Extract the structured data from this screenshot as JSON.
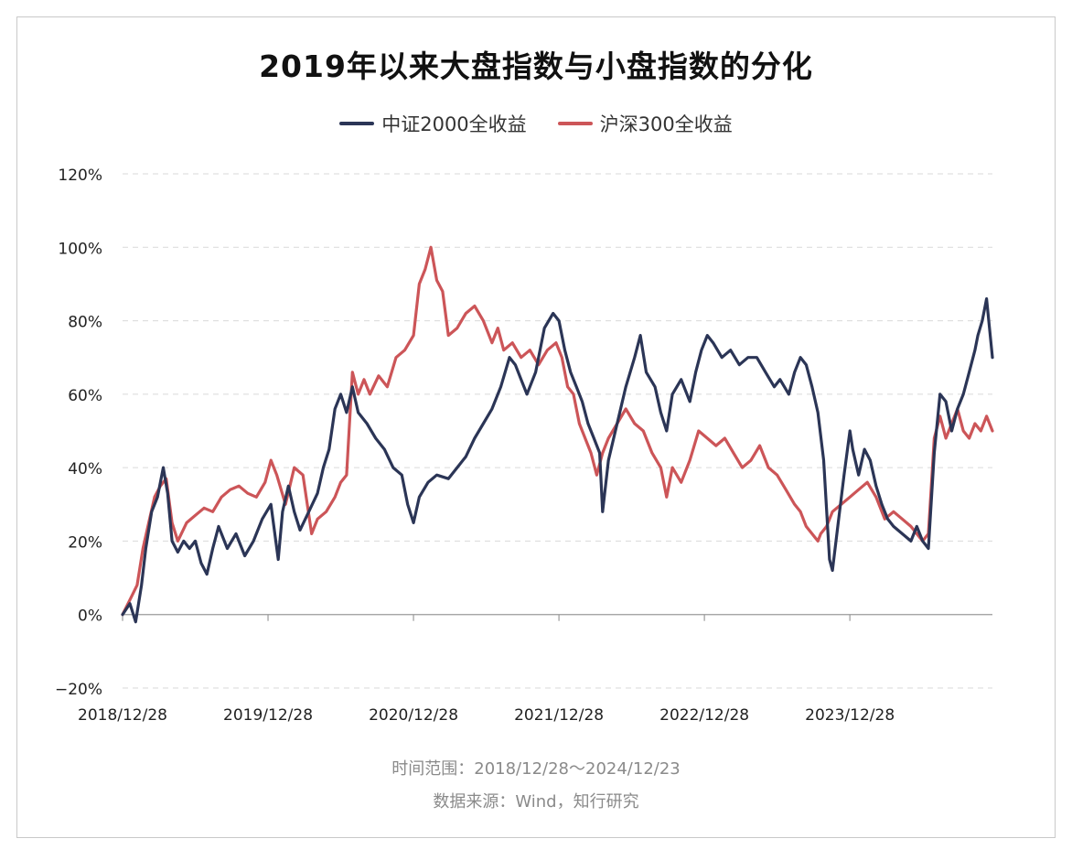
{
  "title": "2019年以来大盘指数与小盘指数的分化",
  "source_lines": [
    "时间范围：2018/12/28～2024/12/23",
    "数据来源：Wind，知行研究"
  ],
  "colors": {
    "series_1": "#2b3556",
    "series_2": "#cc5558",
    "grid": "#d9d9d9",
    "axis": "#9a9a9a",
    "text": "#222222"
  },
  "chart_data": {
    "type": "line",
    "title": "2019年以来大盘指数与小盘指数的分化",
    "xlabel": "",
    "ylabel": "",
    "ylim": [
      -20,
      120
    ],
    "y_ticks": [
      -20,
      0,
      20,
      40,
      60,
      80,
      100,
      120
    ],
    "y_tick_labels": [
      "−20%",
      "0%",
      "20%",
      "40%",
      "60%",
      "80%",
      "100%",
      "120%"
    ],
    "x_tick_labels": [
      "2018/12/28",
      "2019/12/28",
      "2020/12/28",
      "2021/12/28",
      "2022/12/28",
      "2023/12/28"
    ],
    "x_unit": "years since 2018/12/28",
    "x_ticks": [
      0,
      1,
      2,
      3,
      4,
      5
    ],
    "x_range": [
      0,
      5.98
    ],
    "legend_position": "top-center",
    "grid": true,
    "series": [
      {
        "name": "中证2000全收益",
        "points": [
          [
            0.0,
            0
          ],
          [
            0.05,
            3
          ],
          [
            0.09,
            -2
          ],
          [
            0.13,
            8
          ],
          [
            0.16,
            18
          ],
          [
            0.2,
            28
          ],
          [
            0.24,
            32
          ],
          [
            0.28,
            40
          ],
          [
            0.31,
            33
          ],
          [
            0.34,
            20
          ],
          [
            0.38,
            17
          ],
          [
            0.42,
            20
          ],
          [
            0.46,
            18
          ],
          [
            0.5,
            20
          ],
          [
            0.54,
            14
          ],
          [
            0.58,
            11
          ],
          [
            0.62,
            18
          ],
          [
            0.66,
            24
          ],
          [
            0.72,
            18
          ],
          [
            0.78,
            22
          ],
          [
            0.84,
            16
          ],
          [
            0.9,
            20
          ],
          [
            0.96,
            26
          ],
          [
            1.02,
            30
          ],
          [
            1.07,
            15
          ],
          [
            1.1,
            28
          ],
          [
            1.14,
            35
          ],
          [
            1.18,
            28
          ],
          [
            1.22,
            23
          ],
          [
            1.28,
            28
          ],
          [
            1.34,
            33
          ],
          [
            1.38,
            40
          ],
          [
            1.42,
            45
          ],
          [
            1.46,
            56
          ],
          [
            1.5,
            60
          ],
          [
            1.54,
            55
          ],
          [
            1.58,
            62
          ],
          [
            1.62,
            55
          ],
          [
            1.68,
            52
          ],
          [
            1.74,
            48
          ],
          [
            1.8,
            45
          ],
          [
            1.86,
            40
          ],
          [
            1.92,
            38
          ],
          [
            1.96,
            30
          ],
          [
            2.0,
            25
          ],
          [
            2.04,
            32
          ],
          [
            2.1,
            36
          ],
          [
            2.16,
            38
          ],
          [
            2.24,
            37
          ],
          [
            2.3,
            40
          ],
          [
            2.36,
            43
          ],
          [
            2.42,
            48
          ],
          [
            2.48,
            52
          ],
          [
            2.54,
            56
          ],
          [
            2.6,
            62
          ],
          [
            2.66,
            70
          ],
          [
            2.7,
            68
          ],
          [
            2.74,
            64
          ],
          [
            2.78,
            60
          ],
          [
            2.84,
            66
          ],
          [
            2.9,
            78
          ],
          [
            2.96,
            82
          ],
          [
            3.0,
            80
          ],
          [
            3.04,
            72
          ],
          [
            3.08,
            66
          ],
          [
            3.12,
            62
          ],
          [
            3.16,
            58
          ],
          [
            3.2,
            52
          ],
          [
            3.24,
            48
          ],
          [
            3.28,
            44
          ],
          [
            3.3,
            28
          ],
          [
            3.34,
            42
          ],
          [
            3.4,
            52
          ],
          [
            3.46,
            62
          ],
          [
            3.52,
            70
          ],
          [
            3.56,
            76
          ],
          [
            3.6,
            66
          ],
          [
            3.66,
            62
          ],
          [
            3.7,
            55
          ],
          [
            3.74,
            50
          ],
          [
            3.78,
            60
          ],
          [
            3.84,
            64
          ],
          [
            3.9,
            58
          ],
          [
            3.94,
            66
          ],
          [
            3.98,
            72
          ],
          [
            4.02,
            76
          ],
          [
            4.06,
            74
          ],
          [
            4.12,
            70
          ],
          [
            4.18,
            72
          ],
          [
            4.24,
            68
          ],
          [
            4.3,
            70
          ],
          [
            4.36,
            70
          ],
          [
            4.42,
            66
          ],
          [
            4.48,
            62
          ],
          [
            4.52,
            64
          ],
          [
            4.58,
            60
          ],
          [
            4.62,
            66
          ],
          [
            4.66,
            70
          ],
          [
            4.7,
            68
          ],
          [
            4.74,
            62
          ],
          [
            4.78,
            55
          ],
          [
            4.82,
            42
          ],
          [
            4.86,
            15
          ],
          [
            4.88,
            12
          ],
          [
            4.92,
            25
          ],
          [
            4.96,
            38
          ],
          [
            5.0,
            50
          ],
          [
            5.02,
            45
          ],
          [
            5.06,
            38
          ],
          [
            5.1,
            45
          ],
          [
            5.14,
            42
          ],
          [
            5.18,
            35
          ],
          [
            5.22,
            30
          ],
          [
            5.26,
            26
          ],
          [
            5.3,
            24
          ],
          [
            5.36,
            22
          ],
          [
            5.42,
            20
          ],
          [
            5.46,
            24
          ],
          [
            5.5,
            20
          ],
          [
            5.54,
            18
          ],
          [
            5.58,
            44
          ],
          [
            5.62,
            60
          ],
          [
            5.66,
            58
          ],
          [
            5.7,
            50
          ],
          [
            5.74,
            56
          ],
          [
            5.78,
            60
          ],
          [
            5.82,
            66
          ],
          [
            5.86,
            72
          ],
          [
            5.88,
            76
          ],
          [
            5.91,
            80
          ],
          [
            5.94,
            86
          ],
          [
            5.96,
            78
          ],
          [
            5.98,
            70
          ]
        ]
      },
      {
        "name": "沪深300全收益",
        "points": [
          [
            0.0,
            0
          ],
          [
            0.05,
            4
          ],
          [
            0.1,
            8
          ],
          [
            0.14,
            18
          ],
          [
            0.18,
            25
          ],
          [
            0.22,
            32
          ],
          [
            0.26,
            35
          ],
          [
            0.3,
            37
          ],
          [
            0.34,
            25
          ],
          [
            0.38,
            20
          ],
          [
            0.44,
            25
          ],
          [
            0.5,
            27
          ],
          [
            0.56,
            29
          ],
          [
            0.62,
            28
          ],
          [
            0.68,
            32
          ],
          [
            0.74,
            34
          ],
          [
            0.8,
            35
          ],
          [
            0.86,
            33
          ],
          [
            0.92,
            32
          ],
          [
            0.98,
            36
          ],
          [
            1.02,
            42
          ],
          [
            1.06,
            38
          ],
          [
            1.12,
            30
          ],
          [
            1.18,
            40
          ],
          [
            1.24,
            38
          ],
          [
            1.3,
            22
          ],
          [
            1.34,
            26
          ],
          [
            1.4,
            28
          ],
          [
            1.46,
            32
          ],
          [
            1.5,
            36
          ],
          [
            1.54,
            38
          ],
          [
            1.58,
            66
          ],
          [
            1.62,
            60
          ],
          [
            1.66,
            64
          ],
          [
            1.7,
            60
          ],
          [
            1.76,
            65
          ],
          [
            1.82,
            62
          ],
          [
            1.88,
            70
          ],
          [
            1.94,
            72
          ],
          [
            2.0,
            76
          ],
          [
            2.04,
            90
          ],
          [
            2.08,
            94
          ],
          [
            2.12,
            100
          ],
          [
            2.16,
            91
          ],
          [
            2.2,
            88
          ],
          [
            2.24,
            76
          ],
          [
            2.3,
            78
          ],
          [
            2.36,
            82
          ],
          [
            2.42,
            84
          ],
          [
            2.48,
            80
          ],
          [
            2.54,
            74
          ],
          [
            2.58,
            78
          ],
          [
            2.62,
            72
          ],
          [
            2.68,
            74
          ],
          [
            2.74,
            70
          ],
          [
            2.8,
            72
          ],
          [
            2.86,
            68
          ],
          [
            2.92,
            72
          ],
          [
            2.98,
            74
          ],
          [
            3.02,
            70
          ],
          [
            3.06,
            62
          ],
          [
            3.1,
            60
          ],
          [
            3.14,
            52
          ],
          [
            3.18,
            48
          ],
          [
            3.22,
            44
          ],
          [
            3.26,
            38
          ],
          [
            3.3,
            44
          ],
          [
            3.34,
            48
          ],
          [
            3.4,
            52
          ],
          [
            3.46,
            56
          ],
          [
            3.52,
            52
          ],
          [
            3.58,
            50
          ],
          [
            3.64,
            44
          ],
          [
            3.7,
            40
          ],
          [
            3.74,
            32
          ],
          [
            3.78,
            40
          ],
          [
            3.84,
            36
          ],
          [
            3.9,
            42
          ],
          [
            3.96,
            50
          ],
          [
            4.02,
            48
          ],
          [
            4.08,
            46
          ],
          [
            4.14,
            48
          ],
          [
            4.2,
            44
          ],
          [
            4.26,
            40
          ],
          [
            4.32,
            42
          ],
          [
            4.38,
            46
          ],
          [
            4.44,
            40
          ],
          [
            4.5,
            38
          ],
          [
            4.56,
            34
          ],
          [
            4.62,
            30
          ],
          [
            4.66,
            28
          ],
          [
            4.7,
            24
          ],
          [
            4.74,
            22
          ],
          [
            4.78,
            20
          ],
          [
            4.8,
            22
          ],
          [
            4.84,
            24
          ],
          [
            4.88,
            28
          ],
          [
            4.94,
            30
          ],
          [
            5.0,
            32
          ],
          [
            5.06,
            34
          ],
          [
            5.12,
            36
          ],
          [
            5.18,
            32
          ],
          [
            5.24,
            26
          ],
          [
            5.3,
            28
          ],
          [
            5.36,
            26
          ],
          [
            5.42,
            24
          ],
          [
            5.46,
            22
          ],
          [
            5.5,
            20
          ],
          [
            5.54,
            22
          ],
          [
            5.58,
            48
          ],
          [
            5.62,
            54
          ],
          [
            5.66,
            48
          ],
          [
            5.7,
            52
          ],
          [
            5.74,
            56
          ],
          [
            5.78,
            50
          ],
          [
            5.82,
            48
          ],
          [
            5.86,
            52
          ],
          [
            5.9,
            50
          ],
          [
            5.94,
            54
          ],
          [
            5.98,
            50
          ]
        ]
      }
    ]
  }
}
